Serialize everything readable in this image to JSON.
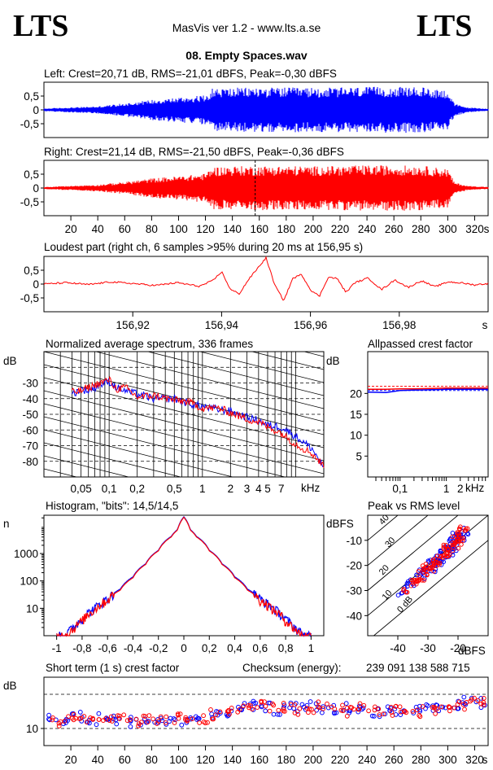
{
  "header": {
    "logo_left": "LTS",
    "logo_right": "LTS",
    "app_title": "MasVis ver 1.2 - www.lts.a.se",
    "file_title": "08. Empty Spaces.wav"
  },
  "colors": {
    "left": "#0000ff",
    "right": "#ff0000",
    "axis": "#000000"
  },
  "chart_data": [
    {
      "id": "left_waveform",
      "type": "area",
      "title": "Left: Crest=20,71 dB, RMS=-21,01 dBFS, Peak=-0,30 dBFS",
      "yticks": [
        "0,5",
        "0",
        "-0,5"
      ],
      "ylim": [
        -1,
        1
      ],
      "xlim": [
        0,
        330
      ],
      "series": [
        {
          "name": "Left",
          "color": "#0000ff",
          "x": [
            0,
            20,
            40,
            60,
            80,
            100,
            120,
            125,
            140,
            160,
            180,
            200,
            220,
            240,
            260,
            280,
            300,
            305,
            315,
            330
          ],
          "values": [
            0.05,
            0.09,
            0.13,
            0.24,
            0.37,
            0.45,
            0.53,
            0.78,
            0.8,
            0.81,
            0.81,
            0.8,
            0.81,
            0.83,
            0.83,
            0.82,
            0.72,
            0.22,
            0.09,
            0.04
          ]
        }
      ]
    },
    {
      "id": "right_waveform",
      "type": "area",
      "title": "Right: Crest=21,14 dB, RMS=-21,50 dBFS, Peak=-0,36 dBFS",
      "yticks": [
        "0,5",
        "0",
        "-0,5"
      ],
      "ylim": [
        -1,
        1
      ],
      "xlim": [
        0,
        330
      ],
      "xticks": [
        20,
        40,
        60,
        80,
        100,
        120,
        140,
        160,
        180,
        200,
        220,
        240,
        260,
        280,
        300,
        320
      ],
      "xunit": "s",
      "marker_x": 156.95,
      "series": [
        {
          "name": "Right",
          "color": "#ff0000",
          "x": [
            0,
            20,
            40,
            60,
            80,
            100,
            120,
            125,
            140,
            160,
            180,
            200,
            220,
            240,
            260,
            280,
            300,
            305,
            315,
            330
          ],
          "values": [
            0.04,
            0.08,
            0.12,
            0.22,
            0.35,
            0.43,
            0.52,
            0.76,
            0.79,
            0.8,
            0.8,
            0.79,
            0.8,
            0.82,
            0.82,
            0.81,
            0.7,
            0.2,
            0.08,
            0.04
          ]
        }
      ]
    },
    {
      "id": "loudest_part",
      "type": "line",
      "title": "Loudest part (right ch, 6 samples >95% during 20 ms at 156,95 s)",
      "yticks": [
        "0,5",
        "0",
        "-0,5"
      ],
      "ylim": [
        -1,
        1
      ],
      "xlim": [
        156.9,
        157.0
      ],
      "xticks": [
        "156,92",
        "156,94",
        "156,96",
        "156,98"
      ],
      "xunit": "s",
      "series": [
        {
          "name": "Right",
          "color": "#ff0000",
          "x": [
            156.9,
            156.905,
            156.91,
            156.915,
            156.92,
            156.925,
            156.93,
            156.935,
            156.938,
            156.94,
            156.942,
            156.944,
            156.946,
            156.948,
            156.95,
            156.952,
            156.954,
            156.956,
            156.958,
            156.96,
            156.962,
            156.964,
            156.966,
            156.968,
            156.97,
            156.973,
            156.976,
            156.979,
            156.982,
            156.985,
            156.988,
            156.991,
            156.994,
            156.997,
            157.0
          ],
          "values": [
            0.0,
            0.05,
            -0.02,
            0.08,
            0.02,
            -0.05,
            0.05,
            -0.08,
            0.12,
            0.45,
            -0.2,
            -0.35,
            0.15,
            0.55,
            0.95,
            -0.05,
            -0.6,
            0.2,
            0.35,
            -0.2,
            -0.45,
            0.25,
            0.2,
            -0.3,
            0.05,
            0.22,
            -0.2,
            0.15,
            -0.12,
            0.12,
            -0.1,
            0.08,
            0.04,
            -0.03,
            0.02
          ]
        }
      ]
    },
    {
      "id": "spectrum",
      "type": "line",
      "title": "Normalized average spectrum, 336 frames",
      "yunit": "dB",
      "yticks": [
        "-30",
        "-40",
        "-50",
        "-60",
        "-70",
        "-80"
      ],
      "ylim": [
        -90,
        -10
      ],
      "xscale": "log",
      "xlim": [
        0.02,
        20
      ],
      "xtick_values": [
        0.05,
        0.1,
        0.2,
        0.5,
        1,
        2,
        3,
        4,
        5,
        7
      ],
      "xticks": [
        "0,05",
        "0,1",
        "0,2",
        "0,5",
        "1",
        "2",
        "3",
        "4",
        "5",
        "7"
      ],
      "xunit": "kHz",
      "series": [
        {
          "name": "Left",
          "color": "#0000ff",
          "x": [
            0.02,
            0.03,
            0.04,
            0.05,
            0.06,
            0.08,
            0.1,
            0.12,
            0.15,
            0.2,
            0.3,
            0.5,
            0.7,
            1,
            1.5,
            2,
            3,
            4,
            5,
            7,
            10,
            15,
            20
          ],
          "values": [
            -48,
            -43,
            -37,
            -34,
            -35,
            -31,
            -29,
            -33,
            -35,
            -37,
            -40,
            -40,
            -43,
            -45,
            -47,
            -48,
            -52,
            -54,
            -57,
            -58,
            -64,
            -72,
            -84
          ]
        },
        {
          "name": "Right",
          "color": "#ff0000",
          "x": [
            0.02,
            0.03,
            0.04,
            0.05,
            0.06,
            0.08,
            0.1,
            0.12,
            0.15,
            0.2,
            0.3,
            0.5,
            0.7,
            1,
            1.5,
            2,
            3,
            4,
            5,
            7,
            10,
            15,
            20
          ],
          "values": [
            -49,
            -44,
            -36,
            -35,
            -33,
            -30,
            -28,
            -34,
            -33,
            -39,
            -38,
            -41,
            -42,
            -46,
            -46,
            -49,
            -53,
            -55,
            -58,
            -62,
            -69,
            -75,
            -83
          ]
        }
      ]
    },
    {
      "id": "allpassed_crest",
      "type": "line",
      "title": "Allpassed crest factor",
      "yunit": "dB",
      "yticks": [
        "20",
        "15",
        "10",
        "5"
      ],
      "ylim": [
        0,
        30
      ],
      "xscale": "log",
      "xlim": [
        0.02,
        8
      ],
      "xtick_values": [
        0.1,
        1,
        2
      ],
      "xticks": [
        "0,1",
        "1",
        "2"
      ],
      "xunit": "kHz",
      "series": [
        {
          "name": "Left",
          "color": "#0000ff",
          "x": [
            0.02,
            0.05,
            0.1,
            0.2,
            0.5,
            1,
            2,
            5,
            8
          ],
          "values": [
            20.3,
            20.2,
            20.7,
            20.8,
            20.9,
            21.0,
            21.0,
            21.0,
            21.0
          ]
        },
        {
          "name": "Right",
          "color": "#ff0000",
          "x": [
            0.02,
            0.05,
            0.1,
            0.2,
            0.5,
            1,
            2,
            5,
            8
          ],
          "values": [
            21.0,
            21.0,
            21.1,
            21.1,
            21.2,
            21.3,
            21.3,
            21.3,
            21.3
          ]
        }
      ]
    },
    {
      "id": "histogram",
      "type": "line",
      "title": "Histogram, \"bits\": 14,5/14,5",
      "yunit": "n",
      "yscale": "log",
      "ytick_values": [
        10,
        100,
        1000
      ],
      "yticks": [
        "10",
        "100",
        "1000"
      ],
      "ylim": [
        1,
        25000
      ],
      "xlim": [
        -1.1,
        1.1
      ],
      "xtick_values": [
        -1,
        -0.8,
        -0.6,
        -0.4,
        -0.2,
        0,
        0.2,
        0.4,
        0.6,
        0.8,
        1
      ],
      "xticks": [
        "-1",
        "-0,8",
        "-0,6",
        "-0,4",
        "-0,2",
        "0",
        "0,2",
        "0,4",
        "0,6",
        "0,8",
        "1"
      ],
      "series": [
        {
          "name": "Left",
          "color": "#0000ff",
          "x": [
            -1,
            -0.95,
            -0.9,
            -0.85,
            -0.8,
            -0.7,
            -0.6,
            -0.5,
            -0.4,
            -0.3,
            -0.2,
            -0.1,
            -0.05,
            0,
            0.05,
            0.1,
            0.2,
            0.3,
            0.4,
            0.5,
            0.6,
            0.7,
            0.8,
            0.85,
            0.9,
            0.95,
            1
          ],
          "values": [
            1,
            1,
            1.5,
            2.5,
            4,
            10,
            22,
            50,
            140,
            420,
            1300,
            4200,
            7500,
            22000,
            7500,
            4200,
            1300,
            420,
            140,
            50,
            22,
            10,
            4,
            2.5,
            1.5,
            1,
            1
          ]
        },
        {
          "name": "Right",
          "color": "#ff0000",
          "x": [
            -1,
            -0.95,
            -0.9,
            -0.85,
            -0.8,
            -0.7,
            -0.6,
            -0.5,
            -0.4,
            -0.3,
            -0.2,
            -0.1,
            -0.05,
            0,
            0.05,
            0.1,
            0.2,
            0.3,
            0.4,
            0.5,
            0.6,
            0.7,
            0.8,
            0.85,
            0.9,
            0.95,
            1
          ],
          "values": [
            1,
            1,
            1.3,
            2.2,
            3.5,
            9,
            20,
            46,
            130,
            400,
            1250,
            4000,
            7200,
            21000,
            7200,
            4000,
            1250,
            400,
            130,
            46,
            20,
            9,
            3.5,
            2.2,
            1.3,
            1,
            1
          ]
        }
      ]
    },
    {
      "id": "peak_vs_rms",
      "type": "scatter",
      "title": "Peak vs RMS level",
      "yunit": "dBFS",
      "xunit": "dBFS",
      "yticks": [
        "-10",
        "-20",
        "-30",
        "-40"
      ],
      "ytick_values": [
        -10,
        -20,
        -30,
        -40
      ],
      "ylim": [
        -48,
        0
      ],
      "xlim": [
        -50,
        -10
      ],
      "xtick_values": [
        -40,
        -30,
        -20
      ],
      "xticks": [
        "-40",
        "-30",
        "-20"
      ],
      "crest_lines": [
        {
          "label": "40",
          "db": 40
        },
        {
          "label": "30",
          "db": 30
        },
        {
          "label": "20",
          "db": 20
        },
        {
          "label": "10",
          "db": 10
        },
        {
          "label": "0 dB",
          "db": 0
        }
      ],
      "series": [
        {
          "name": "Left",
          "color": "#0000ff",
          "x": [
            -38,
            -36,
            -35,
            -33,
            -32,
            -31,
            -30,
            -29,
            -28,
            -28,
            -27,
            -26,
            -26,
            -25,
            -24,
            -24,
            -23,
            -22,
            -22,
            -21,
            -21,
            -20,
            -20,
            -19,
            -19,
            -18
          ],
          "values": [
            -30,
            -28,
            -27,
            -25,
            -24,
            -23,
            -22,
            -21,
            -20,
            -19,
            -19,
            -18,
            -17,
            -16,
            -15,
            -14,
            -14,
            -13,
            -12,
            -12,
            -11,
            -10,
            -9,
            -9,
            -8,
            -7
          ]
        },
        {
          "name": "Right",
          "color": "#ff0000",
          "x": [
            -37,
            -35,
            -34,
            -33,
            -32,
            -31,
            -30,
            -30,
            -29,
            -28,
            -27,
            -27,
            -26,
            -25,
            -25,
            -24,
            -23,
            -23,
            -22,
            -21,
            -21,
            -20,
            -20,
            -19,
            -19,
            -18
          ],
          "values": [
            -29,
            -28,
            -26,
            -26,
            -24,
            -23,
            -23,
            -21,
            -20,
            -20,
            -19,
            -18,
            -17,
            -17,
            -15,
            -15,
            -14,
            -13,
            -12,
            -12,
            -10,
            -10,
            -9,
            -8,
            -7,
            -6
          ]
        }
      ]
    },
    {
      "id": "short_term_crest",
      "type": "scatter",
      "title": "Short term (1 s) crest factor",
      "checksum_label": "Checksum (energy):",
      "checksum_value": "239 091 138 588 715",
      "yunit": "dB",
      "ytick_values": [
        10
      ],
      "yticks": [
        "10"
      ],
      "dashed_levels": [
        10,
        20
      ],
      "ylim": [
        5,
        25
      ],
      "xlim": [
        0,
        330
      ],
      "xticks": [
        20,
        40,
        60,
        80,
        100,
        120,
        140,
        160,
        180,
        200,
        220,
        240,
        260,
        280,
        300,
        320
      ],
      "xunit": "s",
      "series": [
        {
          "name": "Left",
          "color": "#0000ff",
          "x": [
            5,
            15,
            25,
            35,
            45,
            55,
            65,
            75,
            85,
            95,
            105,
            115,
            125,
            135,
            145,
            155,
            165,
            175,
            185,
            195,
            205,
            215,
            225,
            235,
            245,
            255,
            265,
            275,
            285,
            295,
            305,
            315,
            325
          ],
          "values": [
            13,
            12.5,
            13.5,
            12,
            13,
            12.5,
            12,
            12,
            12.5,
            12,
            12.5,
            13,
            13.5,
            15,
            16,
            16.5,
            16,
            15.5,
            16,
            16.5,
            16,
            15.5,
            16,
            15.5,
            15,
            15.5,
            15,
            15.5,
            16,
            16,
            16.5,
            18,
            17.5
          ]
        },
        {
          "name": "Right",
          "color": "#ff0000",
          "x": [
            8,
            18,
            28,
            38,
            48,
            58,
            68,
            78,
            88,
            98,
            108,
            118,
            128,
            138,
            148,
            158,
            168,
            178,
            188,
            198,
            208,
            218,
            228,
            238,
            248,
            258,
            268,
            278,
            288,
            298,
            308,
            318,
            328
          ],
          "values": [
            12,
            13,
            12.5,
            13.5,
            12,
            13,
            11.5,
            12.5,
            12,
            13,
            12,
            12.5,
            14,
            15.5,
            15.5,
            17,
            16.5,
            16,
            15.5,
            16,
            17,
            16,
            15,
            16,
            15.5,
            15,
            16,
            15,
            15.5,
            16.5,
            17,
            19,
            18
          ]
        }
      ]
    }
  ]
}
